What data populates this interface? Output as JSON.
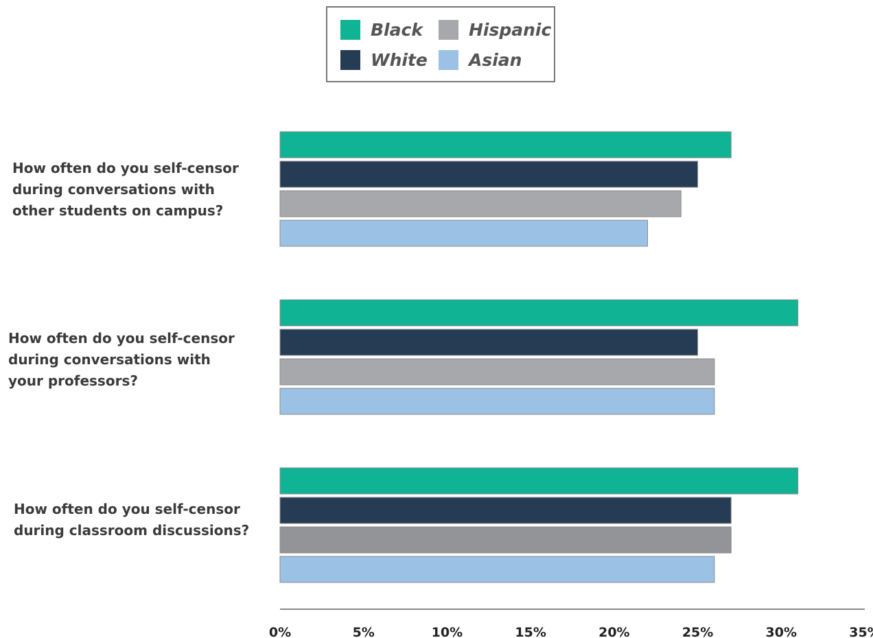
{
  "chart_data": {
    "type": "bar",
    "orientation": "horizontal",
    "title": "",
    "xlabel": "",
    "ylabel": "",
    "categories": [
      "How often do you self-censor\nduring conversations with\nother students on campus?",
      "How often do you self-censor\nduring conversations with\nyour professors?",
      "How often do you self-censor\nduring classroom discussions?"
    ],
    "series": [
      {
        "name": "Black",
        "color": "#10b394",
        "values": [
          27,
          31,
          31
        ]
      },
      {
        "name": "White",
        "color": "#263c54",
        "values": [
          25,
          25,
          27
        ]
      },
      {
        "name": "Hispanic",
        "color": "#a7a8ab",
        "values": [
          24,
          26,
          27
        ]
      },
      {
        "name": "Asian",
        "color": "#9bc2e5",
        "values": [
          22,
          26,
          26
        ]
      }
    ],
    "hispanic_last_color": "#939497",
    "xlim": [
      0,
      35
    ],
    "xticks": [
      "0%",
      "5%",
      "10%",
      "15%",
      "20%",
      "25%",
      "30%",
      "35%"
    ],
    "grid": false,
    "legend_position": "top-center"
  }
}
